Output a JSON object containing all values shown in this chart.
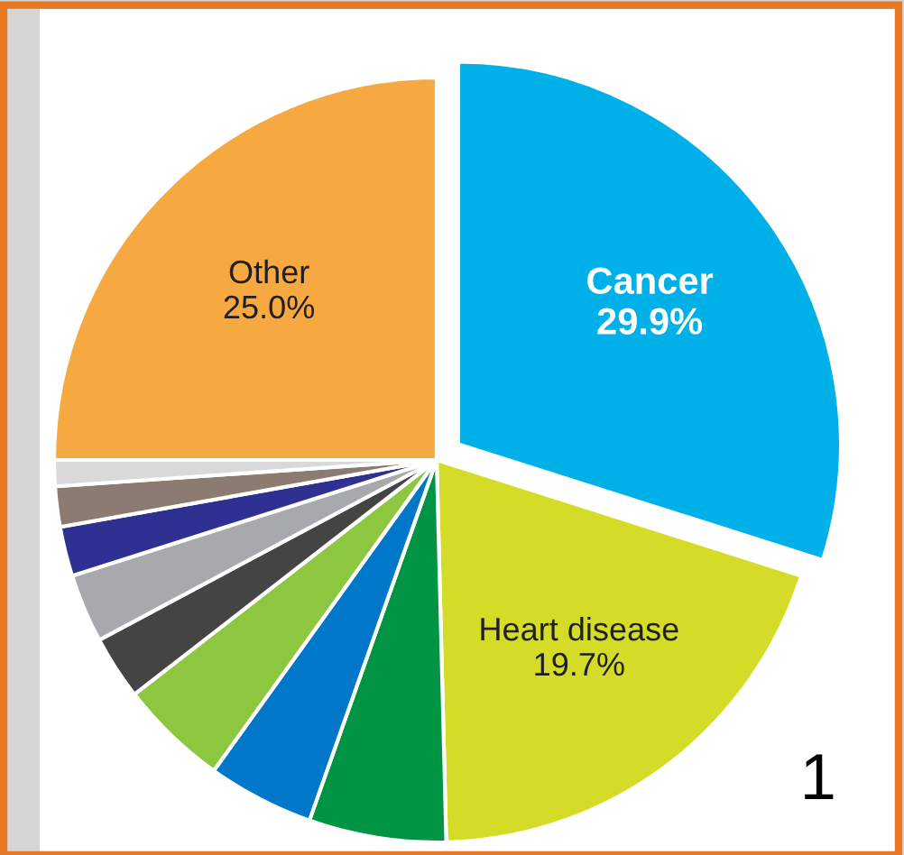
{
  "chart_data": {
    "type": "pie",
    "categories": [
      "Cancer",
      "Heart disease",
      null,
      null,
      null,
      null,
      null,
      null,
      null,
      null,
      "Other"
    ],
    "values": [
      29.9,
      19.7,
      5.8,
      4.5,
      4.6,
      2.7,
      2.9,
      2.1,
      1.7,
      1.1,
      25.0
    ],
    "value_labels": [
      "29.9%",
      "19.7%",
      null,
      null,
      null,
      null,
      null,
      null,
      null,
      null,
      "25.0%"
    ],
    "colors": [
      "#00b0e8",
      "#d4dc28",
      "#009444",
      "#0077c8",
      "#8dc63f",
      "#444444",
      "#a7a9ac",
      "#2e3192",
      "#8c7b70",
      "#d9d9d9",
      "#f7a941"
    ],
    "annotations": [
      "1"
    ]
  }
}
